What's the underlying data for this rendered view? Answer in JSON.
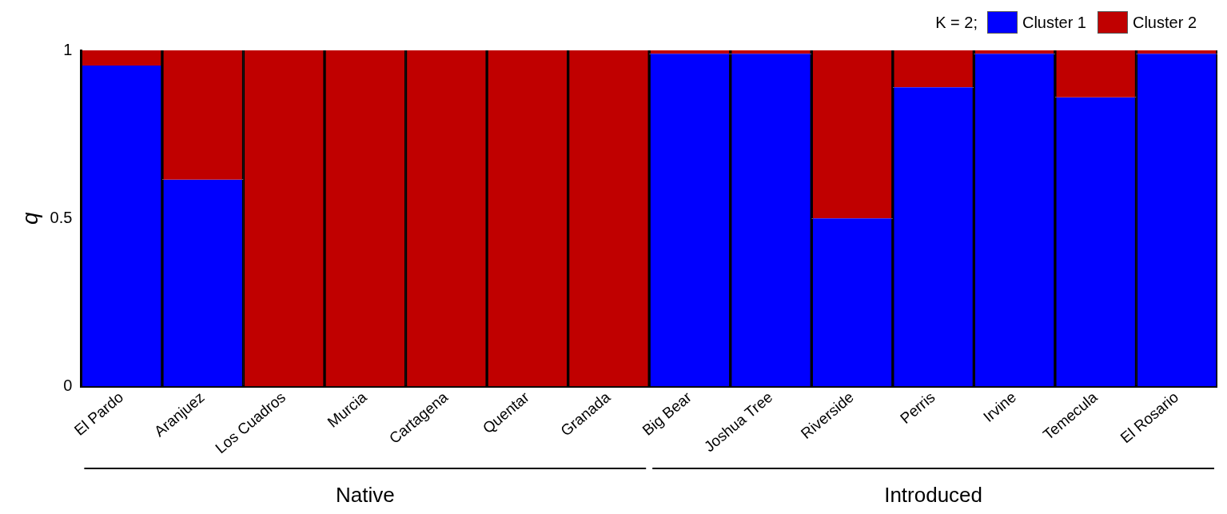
{
  "chart_data": {
    "type": "bar",
    "stacked": true,
    "ylabel": "q",
    "legend_title": "K = 2;",
    "legend": "top right",
    "categories": [
      "El Pardo",
      "Aranjuez",
      "Los Cuadros",
      "Murcia",
      "Cartagena",
      "Quentar",
      "Granada",
      "Big Bear",
      "Joshua Tree",
      "Riverside",
      "Perris",
      "Irvine",
      "Temecula",
      "El Rosario"
    ],
    "series": [
      {
        "name": "Cluster 1",
        "color": "#0000ff",
        "values": [
          0.955,
          0.615,
          0,
          0,
          0,
          0,
          0,
          0.99,
          0.99,
          0.5,
          0.89,
          0.99,
          0.86,
          0.99
        ]
      },
      {
        "name": "Cluster 2",
        "color": "#c00000",
        "values": [
          0.045,
          0.385,
          1,
          1,
          1,
          1,
          1,
          0.01,
          0.01,
          0.5,
          0.11,
          0.01,
          0.14,
          0.01
        ]
      }
    ],
    "ylim": [
      0,
      1
    ],
    "yticks": [
      0,
      0.5,
      1
    ],
    "grid": false,
    "annotations": [
      "Native",
      "Introduced"
    ]
  }
}
